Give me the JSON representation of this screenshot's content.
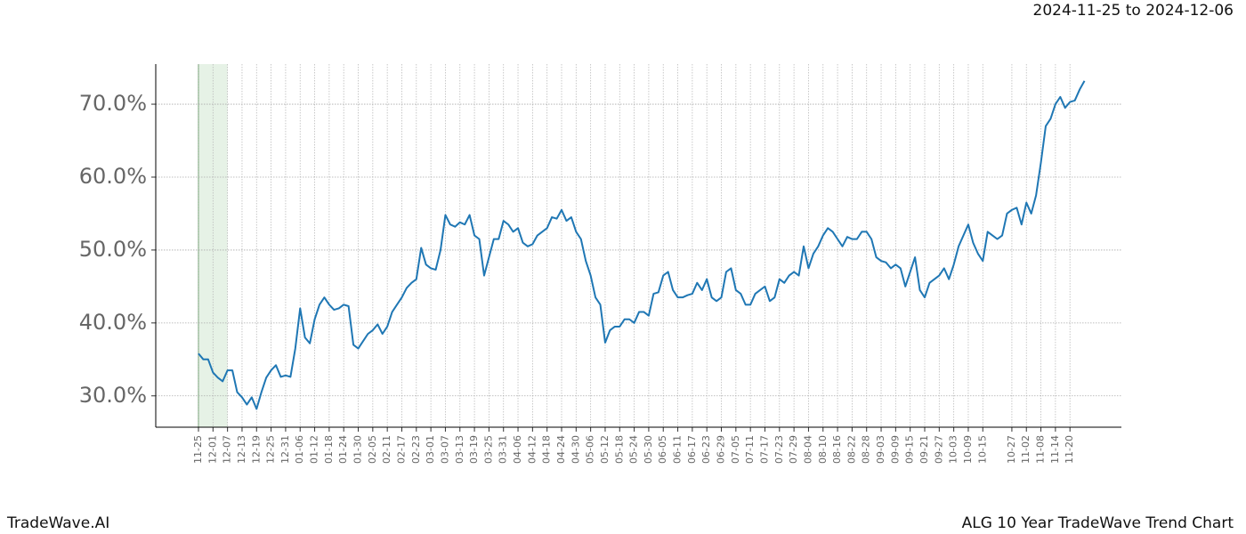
{
  "chart_data": {
    "type": "line",
    "title": "2024-11-25 to 2024-12-06",
    "footer_left": "TradeWave.AI",
    "footer_right": "ALG 10 Year TradeWave Trend Chart",
    "categories": [
      "11-25",
      null,
      null,
      "12-01",
      null,
      null,
      "12-07",
      null,
      null,
      "12-13",
      null,
      null,
      "12-19",
      null,
      null,
      "12-25",
      null,
      null,
      "12-31",
      null,
      null,
      "01-06",
      null,
      null,
      "01-12",
      null,
      null,
      "01-18",
      null,
      null,
      "01-24",
      null,
      null,
      "01-30",
      null,
      null,
      "02-05",
      null,
      null,
      "02-11",
      null,
      null,
      "02-17",
      null,
      null,
      "02-23",
      null,
      null,
      "03-01",
      null,
      null,
      "03-07",
      null,
      null,
      "03-13",
      null,
      null,
      "03-19",
      null,
      null,
      "03-25",
      null,
      null,
      "03-31",
      null,
      null,
      "04-06",
      null,
      null,
      "04-12",
      null,
      null,
      "04-18",
      null,
      null,
      "04-24",
      null,
      null,
      "04-30",
      null,
      null,
      "05-06",
      null,
      null,
      "05-12",
      null,
      null,
      "05-18",
      null,
      null,
      "05-24",
      null,
      null,
      "05-30",
      null,
      null,
      "06-05",
      null,
      null,
      "06-11",
      null,
      null,
      "06-17",
      null,
      null,
      "06-23",
      null,
      null,
      "06-29",
      null,
      null,
      "07-05",
      null,
      null,
      "07-11",
      null,
      null,
      "07-17",
      null,
      null,
      "07-23",
      null,
      null,
      "07-29",
      null,
      null,
      "08-04",
      null,
      null,
      "08-10",
      null,
      null,
      "08-16",
      null,
      null,
      "08-22",
      null,
      null,
      "08-28",
      null,
      null,
      "09-03",
      null,
      null,
      "09-09",
      null,
      null,
      "09-15",
      null,
      null,
      "09-21",
      null,
      null,
      "09-27",
      null,
      null,
      "10-03",
      null,
      null,
      "10-09",
      null,
      null,
      "10-15",
      null,
      null,
      null,
      null,
      null,
      "10-27",
      null,
      null,
      "11-02",
      null,
      null,
      "11-08",
      null,
      null,
      "11-14",
      null,
      null,
      "11-20",
      null,
      null,
      null
    ],
    "series": [
      {
        "color": "#1f77b4",
        "values": [
          35.8,
          35.0,
          35.0,
          33.2,
          32.5,
          32.0,
          33.5,
          33.5,
          30.5,
          29.8,
          28.8,
          29.8,
          28.2,
          30.5,
          32.5,
          33.5,
          34.2,
          32.6,
          32.8,
          32.6,
          36.5,
          42.0,
          38.0,
          37.2,
          40.5,
          42.5,
          43.5,
          42.5,
          41.8,
          42.0,
          42.5,
          42.3,
          37.0,
          36.5,
          37.5,
          38.5,
          39.0,
          39.8,
          38.5,
          39.5,
          41.5,
          42.5,
          43.5,
          44.8,
          45.5,
          46.0,
          50.3,
          48.0,
          47.5,
          47.3,
          50.0,
          54.8,
          53.5,
          53.2,
          53.8,
          53.5,
          54.8,
          52.0,
          51.5,
          46.5,
          49.0,
          51.5,
          51.5,
          54.0,
          53.5,
          52.5,
          53.0,
          51.0,
          50.5,
          50.8,
          52.0,
          52.5,
          53.0,
          54.5,
          54.3,
          55.5,
          54.0,
          54.5,
          52.5,
          51.5,
          48.5,
          46.5,
          43.5,
          42.5,
          37.3,
          39.0,
          39.5,
          39.5,
          40.5,
          40.5,
          40.0,
          41.5,
          41.5,
          41.0,
          44.0,
          44.2,
          46.5,
          47.0,
          44.5,
          43.5,
          43.5,
          43.8,
          44.0,
          45.5,
          44.5,
          46.0,
          43.5,
          43.0,
          43.5,
          47.0,
          47.5,
          44.5,
          44.0,
          42.5,
          42.5,
          44.0,
          44.5,
          45.0,
          43.0,
          43.5,
          46.0,
          45.5,
          46.5,
          47.0,
          46.5,
          50.5,
          47.5,
          49.5,
          50.5,
          52.0,
          53.0,
          52.5,
          51.5,
          50.5,
          51.8,
          51.5,
          51.5,
          52.5,
          52.5,
          51.5,
          49.0,
          48.5,
          48.3,
          47.5,
          48.0,
          47.5,
          45.0,
          47.0,
          49.0,
          44.5,
          43.5,
          45.5,
          46.0,
          46.5,
          47.5,
          46.0,
          48.0,
          50.5,
          52.0,
          53.5,
          51.0,
          49.5,
          48.5,
          52.5,
          52.0,
          51.5,
          52.0,
          55.0,
          55.5,
          55.8,
          53.5,
          56.5,
          55.0,
          57.5,
          62.0,
          67.0,
          68.0,
          70.0,
          71.0,
          69.5,
          70.3,
          70.5,
          72.0,
          73.2
        ]
      }
    ],
    "ylim": [
      25.7,
      75.5
    ],
    "yticks": [
      {
        "value": 30,
        "label": "30.0%"
      },
      {
        "value": 40,
        "label": "40.0%"
      },
      {
        "value": 50,
        "label": "50.0%"
      },
      {
        "value": 60,
        "label": "60.0%"
      },
      {
        "value": 70,
        "label": "70.0%"
      }
    ],
    "grid": true,
    "shaded_range": {
      "from": "11-25",
      "to": "12-07",
      "color": "#d5ead5"
    }
  }
}
